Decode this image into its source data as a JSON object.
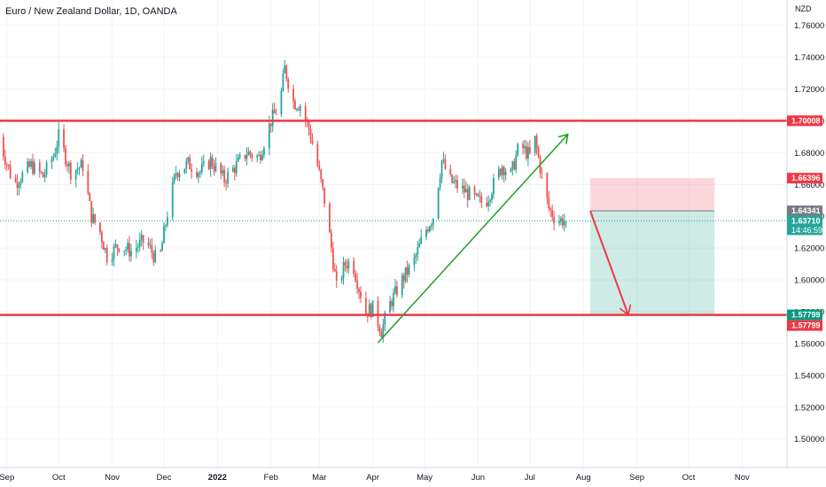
{
  "chart_data": {
    "type": "candlestick",
    "title": "Euro / New Zealand Dollar, 1D, OANDA",
    "currency": "NZD",
    "ylim": [
      1.482,
      1.776
    ],
    "y_ticks": [
      "1.76000",
      "1.74000",
      "1.72000",
      "1.70000",
      "1.68000",
      "1.66000",
      "1.64000",
      "1.62000",
      "1.60000",
      "1.58000",
      "1.56000",
      "1.54000",
      "1.52000",
      "1.50000"
    ],
    "x_ticks": [
      "Sep",
      "Oct",
      "Nov",
      "Dec",
      "2022",
      "Feb",
      "Mar",
      "Apr",
      "May",
      "Jun",
      "Jul",
      "Aug",
      "Sep",
      "Oct",
      "Nov"
    ],
    "x_tick_values": [
      "2021-09-01",
      "2021-10-01",
      "2021-11-01",
      "2021-12-01",
      "2022-01-01",
      "2022-02-01",
      "2022-03-01",
      "2022-04-01",
      "2022-05-01",
      "2022-06-01",
      "2022-07-01",
      "2022-08-01",
      "2022-09-01",
      "2022-10-01",
      "2022-11-01"
    ],
    "xlim": [
      "2021-08-28",
      "2022-11-27"
    ],
    "last_close_date": "2022-07-22",
    "price_path": [
      [
        "2021-08-27",
        1.69
      ],
      [
        "2021-09-05",
        1.66
      ],
      [
        "2021-09-15",
        1.672
      ],
      [
        "2021-09-22",
        1.665
      ],
      [
        "2021-09-28",
        1.678
      ],
      [
        "2021-10-01",
        1.69
      ],
      [
        "2021-10-08",
        1.668
      ],
      [
        "2021-10-15",
        1.672
      ],
      [
        "2021-10-20",
        1.64
      ],
      [
        "2021-10-25",
        1.63
      ],
      [
        "2021-10-29",
        1.615
      ],
      [
        "2021-11-05",
        1.622
      ],
      [
        "2021-11-12",
        1.618
      ],
      [
        "2021-11-20",
        1.625
      ],
      [
        "2021-11-28",
        1.61
      ],
      [
        "2021-12-03",
        1.642
      ],
      [
        "2021-12-08",
        1.668
      ],
      [
        "2021-12-15",
        1.673
      ],
      [
        "2021-12-22",
        1.668
      ],
      [
        "2021-12-28",
        1.675
      ],
      [
        "2022-01-05",
        1.663
      ],
      [
        "2022-01-12",
        1.672
      ],
      [
        "2022-01-18",
        1.68
      ],
      [
        "2022-01-25",
        1.677
      ],
      [
        "2022-02-01",
        1.7
      ],
      [
        "2022-02-06",
        1.71
      ],
      [
        "2022-02-09",
        1.733
      ],
      [
        "2022-02-14",
        1.712
      ],
      [
        "2022-02-18",
        1.71
      ],
      [
        "2022-02-23",
        1.695
      ],
      [
        "2022-02-28",
        1.672
      ],
      [
        "2022-03-04",
        1.65
      ],
      [
        "2022-03-08",
        1.62
      ],
      [
        "2022-03-11",
        1.595
      ],
      [
        "2022-03-16",
        1.61
      ],
      [
        "2022-03-20",
        1.612
      ],
      [
        "2022-03-24",
        1.595
      ],
      [
        "2022-03-28",
        1.58
      ],
      [
        "2022-04-01",
        1.582
      ],
      [
        "2022-04-06",
        1.568
      ],
      [
        "2022-04-11",
        1.585
      ],
      [
        "2022-04-18",
        1.6
      ],
      [
        "2022-04-25",
        1.612
      ],
      [
        "2022-05-01",
        1.63
      ],
      [
        "2022-05-06",
        1.64
      ],
      [
        "2022-05-11",
        1.675
      ],
      [
        "2022-05-16",
        1.662
      ],
      [
        "2022-05-24",
        1.656
      ],
      [
        "2022-05-31",
        1.65
      ],
      [
        "2022-06-05",
        1.648
      ],
      [
        "2022-06-10",
        1.66
      ],
      [
        "2022-06-15",
        1.672
      ],
      [
        "2022-06-20",
        1.666
      ],
      [
        "2022-06-25",
        1.685
      ],
      [
        "2022-07-01",
        1.678
      ],
      [
        "2022-07-04",
        1.688
      ],
      [
        "2022-07-08",
        1.665
      ],
      [
        "2022-07-12",
        1.645
      ],
      [
        "2022-07-16",
        1.638
      ],
      [
        "2022-07-22",
        1.6371
      ]
    ],
    "horizontal_levels": [
      {
        "price": 1.70008,
        "label": "1.70008",
        "color": "#f23645"
      },
      {
        "price": 1.57799,
        "label": "1.57799",
        "color": "#f23645"
      }
    ],
    "trend_line": {
      "from": [
        "2022-04-04",
        1.5605
      ],
      "to": [
        "2022-07-23",
        1.6915
      ],
      "color": "#22a022"
    },
    "position": {
      "start": "2022-08-05",
      "end": "2022-10-16",
      "entry": 1.64341,
      "stop": 1.66396,
      "target": 1.57799,
      "stop_label": "1.66396",
      "entry_label": "1.64341",
      "target_label": "1.57799"
    },
    "projection_arrow": {
      "from": [
        "2022-08-05",
        1.6434
      ],
      "to": [
        "2022-08-27",
        1.578
      ],
      "color": "#f23645"
    },
    "last_price": {
      "label": "1.63710",
      "countdown": "14:46:59",
      "color": "#26a69a"
    }
  }
}
